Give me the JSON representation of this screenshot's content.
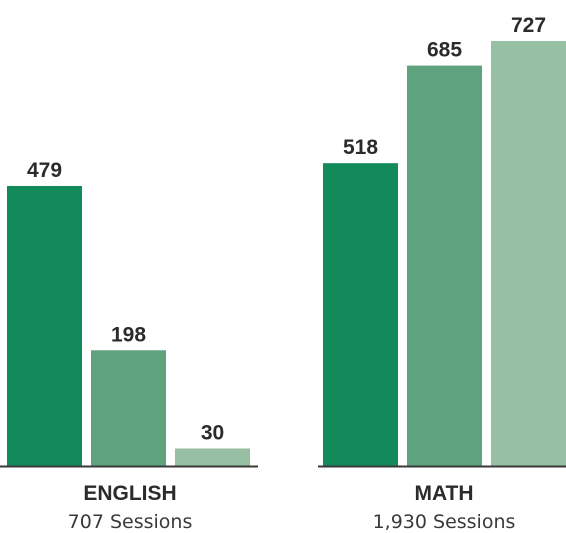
{
  "chart_data": {
    "type": "bar",
    "groups": [
      {
        "label": "ENGLISH",
        "sessions": "707 Sessions",
        "values": [
          479,
          198,
          30
        ],
        "value_labels": [
          "479",
          "198",
          "30"
        ]
      },
      {
        "label": "MATH",
        "sessions": "1,930 Sessions",
        "values": [
          518,
          685,
          727
        ],
        "value_labels": [
          "518",
          "685",
          "727"
        ]
      }
    ],
    "bar_colors": [
      "#138a5a",
      "#5fa37e",
      "#97bfa3"
    ],
    "axis_color": "#3a3a3a",
    "ylim": [
      0,
      727
    ]
  }
}
